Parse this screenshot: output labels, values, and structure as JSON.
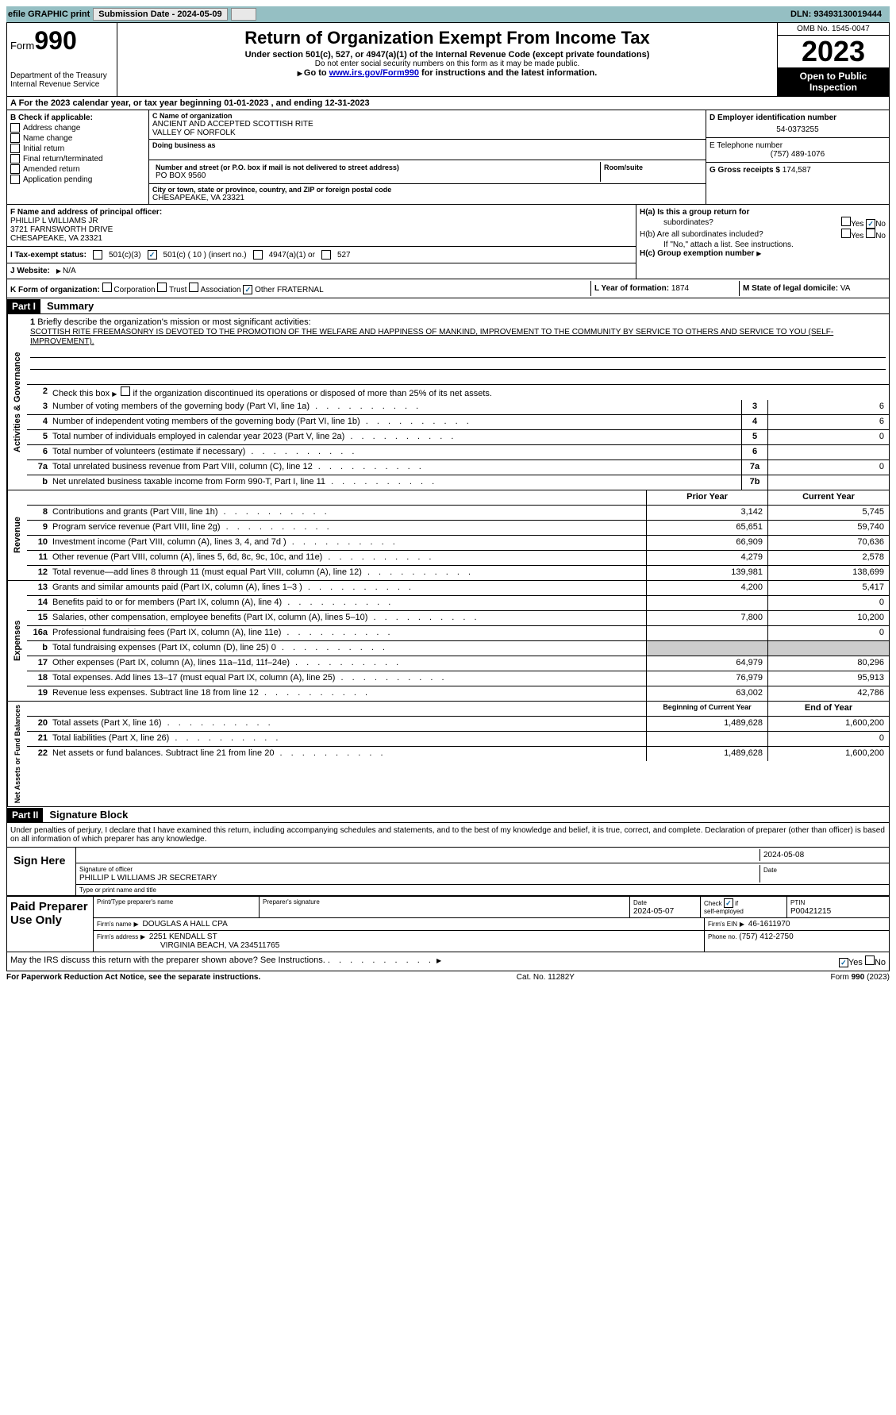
{
  "top_bar": {
    "efile_text": "efile GRAPHIC print",
    "submission_label": "Submission Date - 2024-05-09",
    "dln": "DLN: 93493130019444"
  },
  "header": {
    "form_label": "Form",
    "form_number": "990",
    "title": "Return of Organization Exempt From Income Tax",
    "subtitle": "Under section 501(c), 527, or 4947(a)(1) of the Internal Revenue Code (except private foundations)",
    "warning": "Do not enter social security numbers on this form as it may be made public.",
    "goto_prefix": "Go to ",
    "goto_link": "www.irs.gov/Form990",
    "goto_suffix": " for instructions and the latest information.",
    "dept": "Department of the Treasury",
    "irs": "Internal Revenue Service",
    "omb": "OMB No. 1545-0047",
    "year": "2023",
    "inspection": "Open to Public Inspection"
  },
  "section_a": {
    "text": "A For the 2023 calendar year, or tax year beginning 01-01-2023    , and ending 12-31-2023"
  },
  "section_b": {
    "label": "B Check if applicable:",
    "options": [
      "Address change",
      "Name change",
      "Initial return",
      "Final return/terminated",
      "Amended return",
      "Application pending"
    ]
  },
  "section_c": {
    "name_label": "C Name of organization",
    "org_name": "ANCIENT AND ACCEPTED SCOTTISH RITE",
    "org_name2": "VALLEY OF NORFOLK",
    "dba_label": "Doing business as",
    "street_label": "Number and street (or P.O. box if mail is not delivered to street address)",
    "street": "PO BOX 9560",
    "room_label": "Room/suite",
    "city_label": "City or town, state or province, country, and ZIP or foreign postal code",
    "city": "CHESAPEAKE, VA  23321"
  },
  "section_d": {
    "ein_label": "D Employer identification number",
    "ein": "54-0373255"
  },
  "section_e": {
    "phone_label": "E Telephone number",
    "phone": "(757) 489-1076"
  },
  "section_g": {
    "label": "G Gross receipts $",
    "value": "174,587"
  },
  "section_f": {
    "label": "F Name and address of principal officer:",
    "name": "PHILLIP L WILLIAMS JR",
    "street": "3721 FARNSWORTH DRIVE",
    "city": "CHESAPEAKE, VA  23321"
  },
  "section_h": {
    "ha_label": "H(a)  Is this a group return for",
    "ha_label2": "subordinates?",
    "hb_label": "H(b)  Are all subordinates included?",
    "hb_note": "If \"No,\" attach a list. See instructions.",
    "hc_label": "H(c)  Group exemption number"
  },
  "section_i": {
    "label": "I    Tax-exempt status:",
    "opt1": "501(c)(3)",
    "opt2": "501(c) ( 10 ) (insert no.)",
    "opt3": "4947(a)(1) or",
    "opt4": "527"
  },
  "section_j": {
    "label": "J   Website:",
    "value": "N/A"
  },
  "section_k": {
    "label": "K Form of organization:",
    "opts": [
      "Corporation",
      "Trust",
      "Association",
      "Other"
    ],
    "other_val": "FRATERNAL"
  },
  "section_l": {
    "label": "L Year of formation:",
    "value": "1874"
  },
  "section_m": {
    "label": "M State of legal domicile:",
    "value": "VA"
  },
  "part1": {
    "header": "Part I",
    "title": "Summary",
    "line1_label": "Briefly describe the organization's mission or most significant activities:",
    "mission": "SCOTTISH RITE FREEMASONRY IS DEVOTED TO THE PROMOTION OF THE WELFARE AND HAPPINESS OF MANKIND, IMPROVEMENT TO THE COMMUNITY BY SERVICE TO OTHERS AND SERVICE TO YOU (SELF-IMPROVEMENT).",
    "line2": "Check this box       if the organization discontinued its operations or disposed of more than 25% of its net assets.",
    "lines_gov": [
      {
        "num": "3",
        "desc": "Number of voting members of the governing body (Part VI, line 1a)",
        "box": "3",
        "val": "6"
      },
      {
        "num": "4",
        "desc": "Number of independent voting members of the governing body (Part VI, line 1b)",
        "box": "4",
        "val": "6"
      },
      {
        "num": "5",
        "desc": "Total number of individuals employed in calendar year 2023 (Part V, line 2a)",
        "box": "5",
        "val": "0"
      },
      {
        "num": "6",
        "desc": "Total number of volunteers (estimate if necessary)",
        "box": "6",
        "val": ""
      },
      {
        "num": "7a",
        "desc": "Total unrelated business revenue from Part VIII, column (C), line 12",
        "box": "7a",
        "val": "0"
      },
      {
        "num": "b",
        "desc": "Net unrelated business taxable income from Form 990-T, Part I, line 11",
        "box": "7b",
        "val": ""
      }
    ],
    "col_headers": {
      "prior": "Prior Year",
      "current": "Current Year"
    },
    "revenue": [
      {
        "num": "8",
        "desc": "Contributions and grants (Part VIII, line 1h)",
        "prior": "3,142",
        "current": "5,745"
      },
      {
        "num": "9",
        "desc": "Program service revenue (Part VIII, line 2g)",
        "prior": "65,651",
        "current": "59,740"
      },
      {
        "num": "10",
        "desc": "Investment income (Part VIII, column (A), lines 3, 4, and 7d )",
        "prior": "66,909",
        "current": "70,636"
      },
      {
        "num": "11",
        "desc": "Other revenue (Part VIII, column (A), lines 5, 6d, 8c, 9c, 10c, and 11e)",
        "prior": "4,279",
        "current": "2,578"
      },
      {
        "num": "12",
        "desc": "Total revenue—add lines 8 through 11 (must equal Part VIII, column (A), line 12)",
        "prior": "139,981",
        "current": "138,699"
      }
    ],
    "expenses": [
      {
        "num": "13",
        "desc": "Grants and similar amounts paid (Part IX, column (A), lines 1–3 )",
        "prior": "4,200",
        "current": "5,417"
      },
      {
        "num": "14",
        "desc": "Benefits paid to or for members (Part IX, column (A), line 4)",
        "prior": "",
        "current": "0"
      },
      {
        "num": "15",
        "desc": "Salaries, other compensation, employee benefits (Part IX, column (A), lines 5–10)",
        "prior": "7,800",
        "current": "10,200"
      },
      {
        "num": "16a",
        "desc": "Professional fundraising fees (Part IX, column (A), line 11e)",
        "prior": "",
        "current": "0"
      },
      {
        "num": "b",
        "desc": "Total fundraising expenses (Part IX, column (D), line 25) 0",
        "prior": "SHADED",
        "current": "SHADED"
      },
      {
        "num": "17",
        "desc": "Other expenses (Part IX, column (A), lines 11a–11d, 11f–24e)",
        "prior": "64,979",
        "current": "80,296"
      },
      {
        "num": "18",
        "desc": "Total expenses. Add lines 13–17 (must equal Part IX, column (A), line 25)",
        "prior": "76,979",
        "current": "95,913"
      },
      {
        "num": "19",
        "desc": "Revenue less expenses. Subtract line 18 from line 12",
        "prior": "63,002",
        "current": "42,786"
      }
    ],
    "net_headers": {
      "begin": "Beginning of Current Year",
      "end": "End of Year"
    },
    "net": [
      {
        "num": "20",
        "desc": "Total assets (Part X, line 16)",
        "begin": "1,489,628",
        "end": "1,600,200"
      },
      {
        "num": "21",
        "desc": "Total liabilities (Part X, line 26)",
        "begin": "",
        "end": "0"
      },
      {
        "num": "22",
        "desc": "Net assets or fund balances. Subtract line 21 from line 20",
        "begin": "1,489,628",
        "end": "1,600,200"
      }
    ],
    "vtabs": {
      "gov": "Activities & Governance",
      "rev": "Revenue",
      "exp": "Expenses",
      "net": "Net Assets or Fund Balances"
    }
  },
  "part2": {
    "header": "Part II",
    "title": "Signature Block",
    "declaration": "Under penalties of perjury, I declare that I have examined this return, including accompanying schedules and statements, and to the best of my knowledge and belief, it is true, correct, and complete. Declaration of preparer (other than officer) is based on all information of which preparer has any knowledge.",
    "sign_here": "Sign Here",
    "sig_officer_label": "Signature of officer",
    "sig_date": "2024-05-08",
    "officer_name": "PHILLIP L WILLIAMS JR  SECRETARY",
    "type_name_label": "Type or print name and title",
    "paid_label": "Paid Preparer Use Only",
    "prep_name_label": "Print/Type preparer's name",
    "prep_sig_label": "Preparer's signature",
    "prep_date_label": "Date",
    "prep_date": "2024-05-07",
    "self_emp_label": "Check         if self-employed",
    "ptin_label": "PTIN",
    "ptin": "P00421215",
    "firm_name_label": "Firm's name",
    "firm_name": "DOUGLAS A HALL CPA",
    "firm_ein_label": "Firm's EIN",
    "firm_ein": "46-1611970",
    "firm_addr_label": "Firm's address",
    "firm_addr": "2251 KENDALL ST",
    "firm_addr2": "VIRGINIA BEACH, VA  234511765",
    "firm_phone_label": "Phone no.",
    "firm_phone": "(757) 412-2750",
    "discuss": "May the IRS discuss this return with the preparer shown above? See Instructions."
  },
  "footer": {
    "paperwork": "For Paperwork Reduction Act Notice, see the separate instructions.",
    "cat": "Cat. No. 11282Y",
    "form": "Form 990 (2023)"
  },
  "yes": "Yes",
  "no": "No",
  "date_label": "Date"
}
